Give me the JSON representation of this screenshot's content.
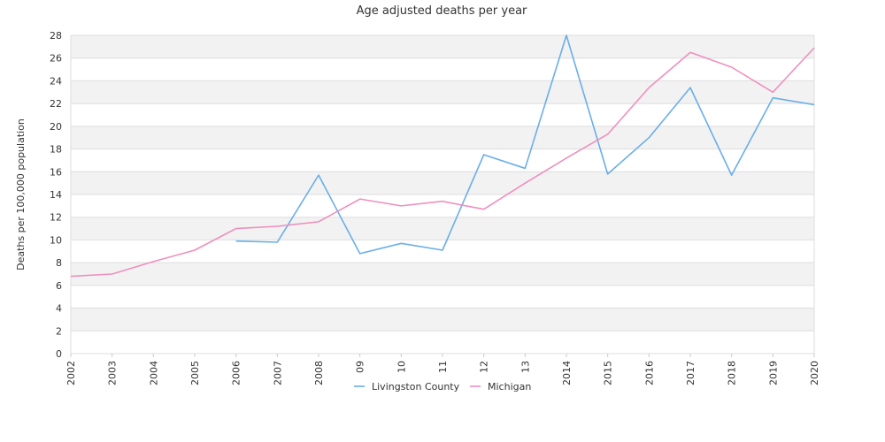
{
  "chart_data": {
    "type": "line",
    "title": "Age adjusted deaths per year",
    "xlabel": "",
    "ylabel": "Deaths per 100,000 population",
    "x": [
      "2002",
      "2003",
      "2004",
      "2005",
      "2006",
      "2007",
      "2008",
      "09",
      "10",
      "11",
      "12",
      "13",
      "2014",
      "2015",
      "2016",
      "2017",
      "2018",
      "2019",
      "2020"
    ],
    "ylim": [
      0,
      28
    ],
    "yticks": [
      0,
      2,
      4,
      6,
      8,
      10,
      12,
      14,
      16,
      18,
      20,
      22,
      24,
      26,
      28
    ],
    "grid": "horizontal banded",
    "legend_position": "bottom-center",
    "series": [
      {
        "name": "Livingston County",
        "color": "#6aaee8",
        "values": [
          null,
          null,
          null,
          null,
          9.9,
          9.8,
          15.7,
          8.8,
          9.7,
          9.1,
          17.5,
          16.3,
          28.0,
          15.8,
          19.0,
          23.4,
          15.7,
          22.5,
          21.9
        ]
      },
      {
        "name": "Michigan",
        "color": "#ef8fbe",
        "values": [
          6.8,
          7.0,
          8.1,
          9.1,
          11.0,
          11.2,
          11.6,
          13.6,
          13.0,
          13.4,
          12.7,
          15.0,
          17.2,
          19.3,
          23.4,
          26.5,
          25.2,
          23.0,
          26.9
        ]
      }
    ]
  }
}
